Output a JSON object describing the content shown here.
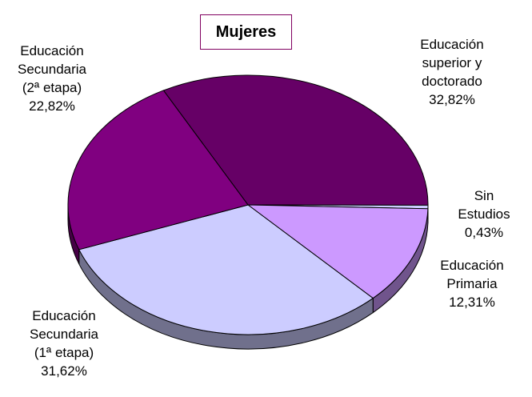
{
  "chart_data": {
    "type": "pie3d",
    "title": "Mujeres",
    "categories": [
      "Educación\nsuperior y\ndoctorado",
      "Sin Estudios",
      "Educación\nPrimaria",
      "Educación\nSecundaria\n(1ª etapa)",
      "Educación\nSecundaria\n(2ª etapa)"
    ],
    "values": [
      32.82,
      0.43,
      12.31,
      31.62,
      22.82
    ],
    "value_labels": [
      "32,82%",
      "0,43%",
      "12,31%",
      "31,62%",
      "22,82%"
    ],
    "colors": [
      "#660066",
      "#ccccff",
      "#cc99ff",
      "#ccccff",
      "#800080"
    ]
  }
}
